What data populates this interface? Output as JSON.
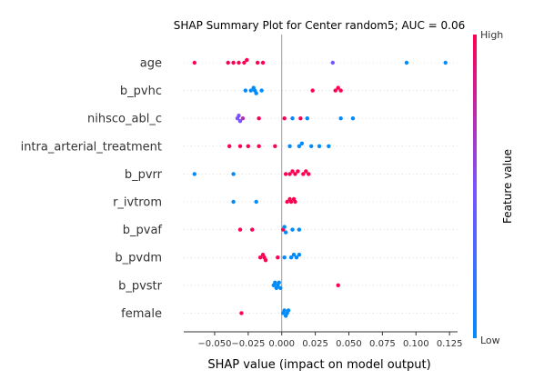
{
  "chart_data": {
    "type": "scatter",
    "subtype": "shap-summary-beeswarm",
    "title": "SHAP Summary Plot for Center random5; AUC = 0.06",
    "xlabel": "SHAP value (impact on model output)",
    "ylabel": "",
    "xlim": [
      -0.073,
      0.131
    ],
    "x_ticks": [
      -0.05,
      -0.025,
      0.0,
      0.025,
      0.05,
      0.075,
      0.1,
      0.125
    ],
    "x_tick_labels": [
      "−0.050",
      "−0.025",
      "0.000",
      "0.025",
      "0.050",
      "0.075",
      "0.100",
      "0.125"
    ],
    "grid": false,
    "zero_line": true,
    "colorbar": {
      "label": "Feature value",
      "high_label": "High",
      "low_label": "Low",
      "high_color": "#ff0051",
      "mid_color": "#7c52ff",
      "low_color": "#008bfb"
    },
    "features": [
      "age",
      "b_pvhc",
      "nihsco_abl_c",
      "intra_arterial_treatment",
      "b_pvrr",
      "r_ivtrom",
      "b_pvaf",
      "b_pvdm",
      "b_pvstr",
      "female"
    ],
    "points": [
      {
        "feature": "age",
        "values": [
          -0.065,
          -0.04,
          -0.036,
          -0.032,
          -0.028,
          -0.026,
          -0.018,
          -0.014,
          0.038,
          0.093,
          0.122
        ],
        "feature_values": [
          1,
          1,
          1,
          1,
          1,
          1,
          1,
          1,
          0.45,
          0,
          0
        ]
      },
      {
        "feature": "b_pvhc",
        "values": [
          -0.027,
          -0.023,
          -0.021,
          -0.02,
          -0.019,
          -0.015,
          0.023,
          0.04,
          0.042,
          0.044
        ],
        "feature_values": [
          0,
          0,
          0,
          0,
          0,
          0,
          1,
          1,
          1,
          1
        ]
      },
      {
        "feature": "nihsco_abl_c",
        "values": [
          -0.033,
          -0.032,
          -0.031,
          -0.029,
          -0.017,
          0.002,
          0.008,
          0.014,
          0.019,
          0.044,
          0.053
        ],
        "feature_values": [
          0.5,
          0.5,
          0.5,
          0.7,
          1,
          1,
          0.05,
          1,
          0,
          0,
          0
        ]
      },
      {
        "feature": "intra_arterial_treatment",
        "values": [
          -0.039,
          -0.031,
          -0.025,
          -0.017,
          -0.005,
          0.006,
          0.013,
          0.015,
          0.022,
          0.028,
          0.035
        ],
        "feature_values": [
          1,
          1,
          1,
          1,
          1,
          0,
          0,
          0,
          0,
          0,
          0
        ]
      },
      {
        "feature": "b_pvrr",
        "values": [
          -0.065,
          -0.036,
          0.003,
          0.006,
          0.008,
          0.01,
          0.012,
          0.016,
          0.018,
          0.02
        ],
        "feature_values": [
          0,
          0,
          1,
          1,
          1,
          1,
          1,
          1,
          1,
          1
        ]
      },
      {
        "feature": "r_ivtrom",
        "values": [
          -0.036,
          -0.019,
          0.004,
          0.006,
          0.007,
          0.009,
          0.01
        ],
        "feature_values": [
          0,
          0,
          1,
          1,
          1,
          1,
          1
        ]
      },
      {
        "feature": "b_pvaf",
        "values": [
          -0.031,
          -0.022,
          0.001,
          0.002,
          0.003,
          0.008,
          0.013
        ],
        "feature_values": [
          1,
          1,
          1,
          0,
          0,
          0,
          0
        ]
      },
      {
        "feature": "b_pvdm",
        "values": [
          -0.016,
          -0.014,
          -0.013,
          -0.012,
          -0.003,
          0.002,
          0.007,
          0.009,
          0.011,
          0.013
        ],
        "feature_values": [
          1,
          1,
          1,
          1,
          1,
          0,
          0,
          0,
          0,
          0
        ]
      },
      {
        "feature": "b_pvstr",
        "values": [
          -0.006,
          -0.005,
          -0.004,
          -0.003,
          -0.002,
          -0.001,
          0.042
        ],
        "feature_values": [
          0,
          0,
          0,
          0,
          0,
          0,
          1
        ]
      },
      {
        "feature": "female",
        "values": [
          -0.03,
          0.001,
          0.002,
          0.003,
          0.004,
          0.005
        ],
        "feature_values": [
          1,
          0,
          0,
          0,
          0,
          0
        ]
      }
    ]
  }
}
